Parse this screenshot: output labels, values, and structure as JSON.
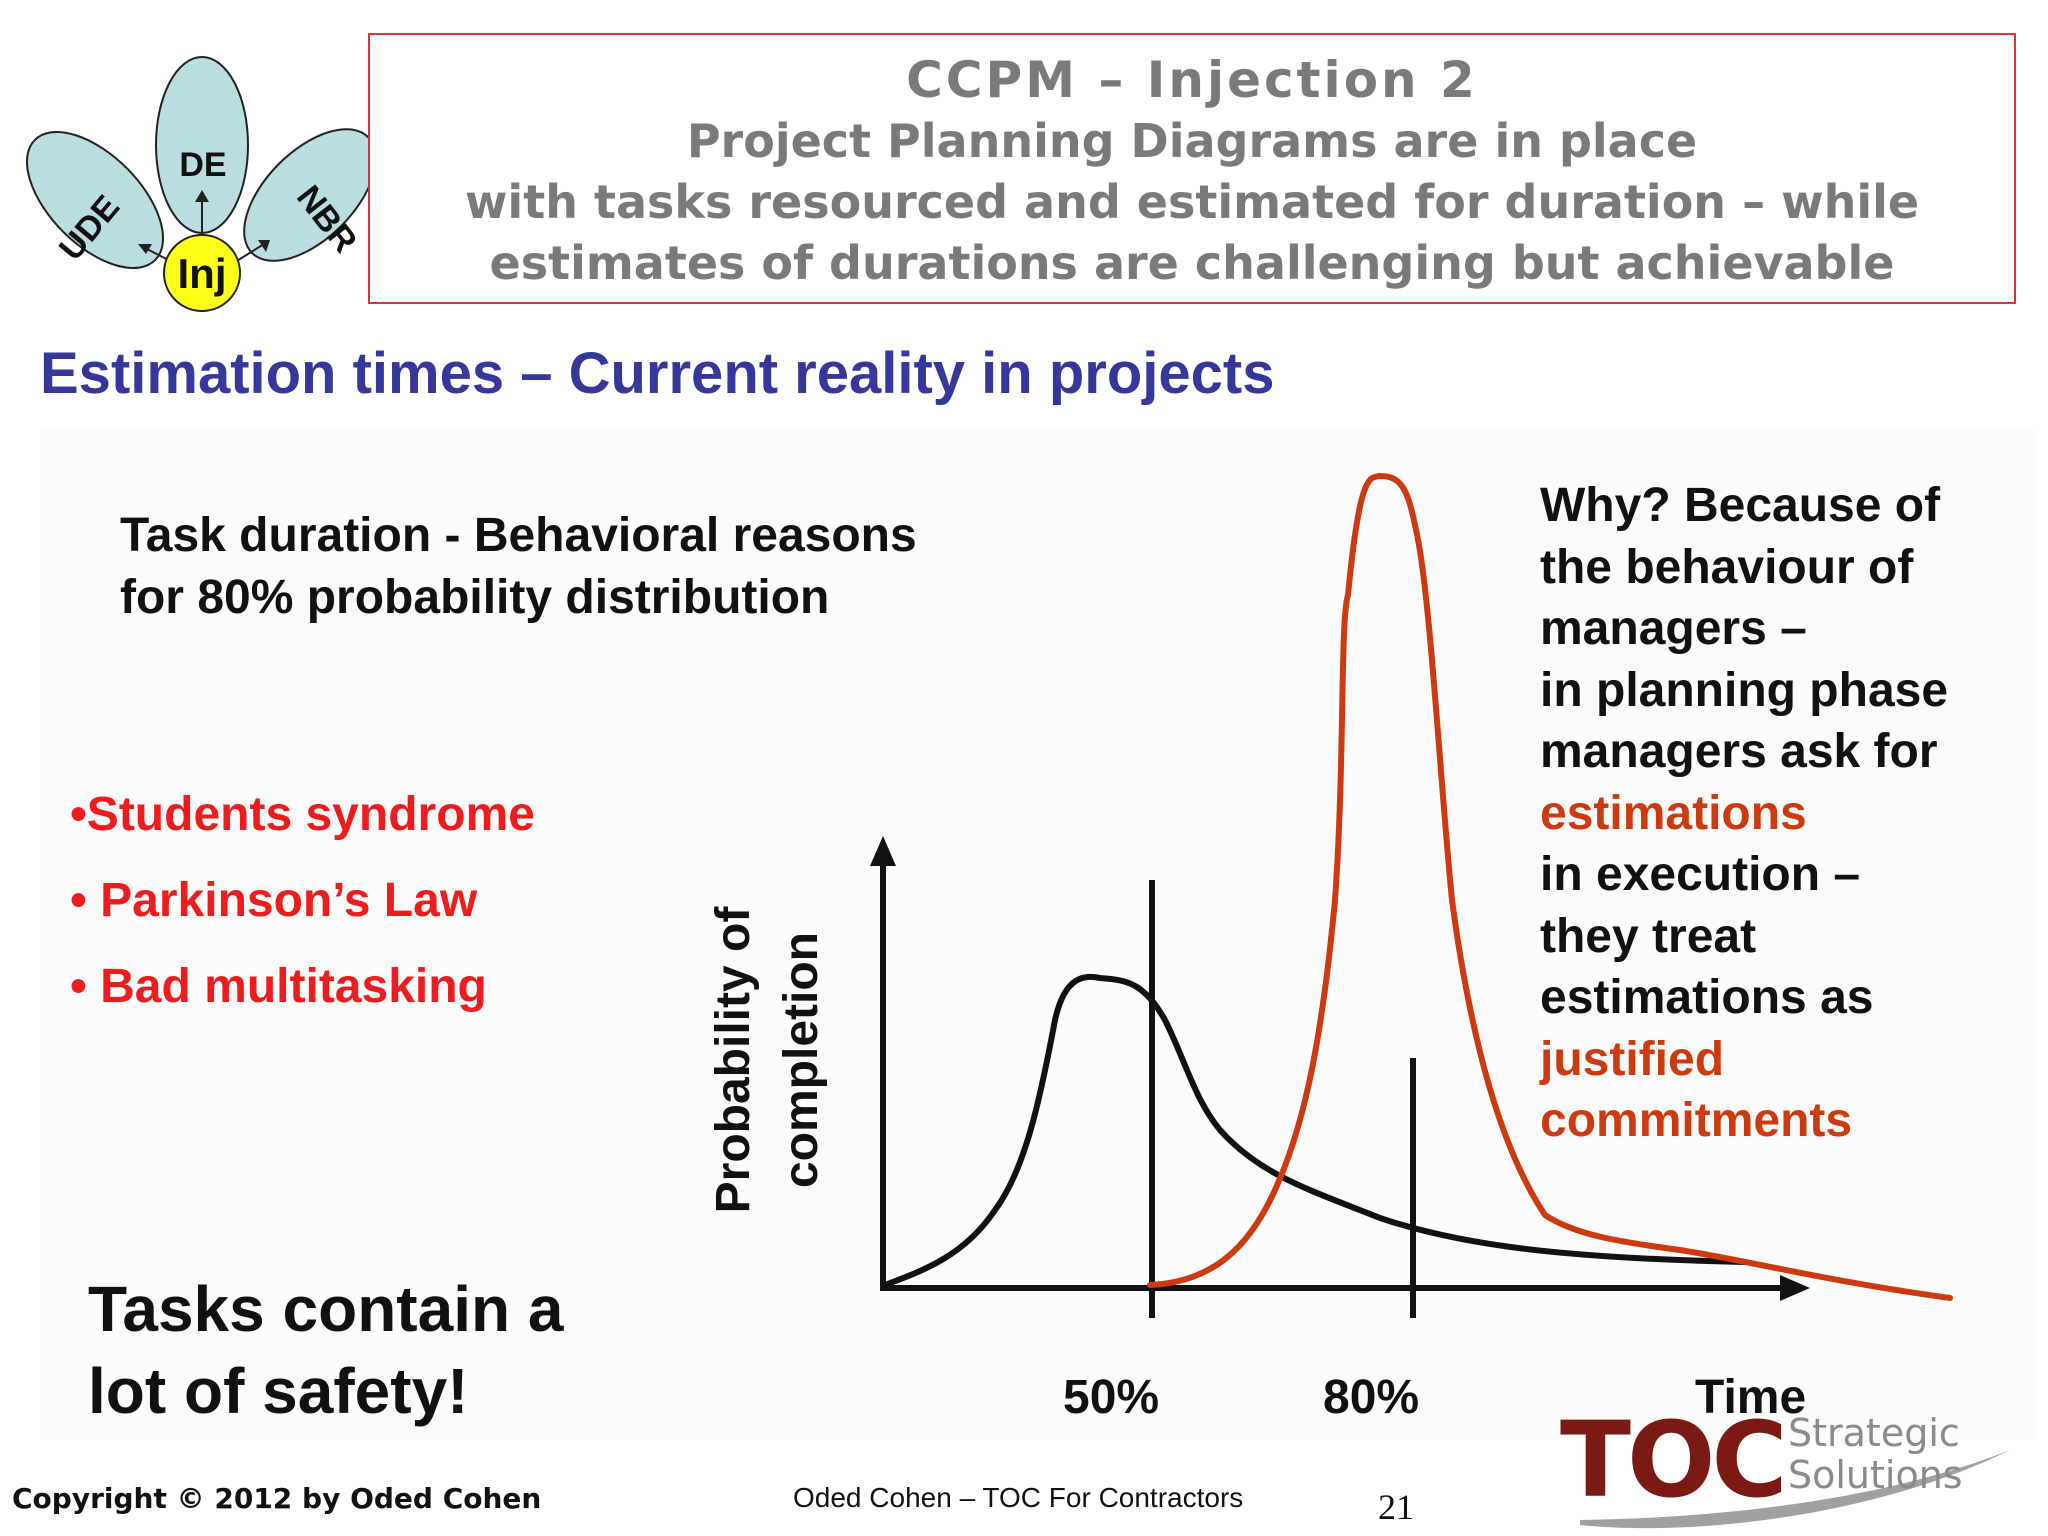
{
  "header": {
    "diagram": {
      "petals": [
        "UDE",
        "DE",
        "NBR"
      ],
      "center": "Inj",
      "colors": {
        "petal": "#b9dde0",
        "center": "#ffff1a"
      }
    },
    "title_lines": [
      "CCPM – Injection 2",
      "Project Planning Diagrams are in place",
      "with tasks resourced and estimated for duration – while",
      "estimates of durations are challenging but achievable"
    ]
  },
  "subtitle": "Estimation times – Current reality in projects",
  "task_duration": {
    "line1": "Task duration - Behavioral reasons",
    "line2": "for 80% probability distribution"
  },
  "bullets": [
    "•Students  syndrome",
    "• Parkinson’s Law",
    "• Bad multitasking"
  ],
  "safety": {
    "line1": "Tasks contain a",
    "line2": "lot of safety!"
  },
  "why_text": {
    "lines": [
      "Why? Because of",
      "the behaviour of",
      "managers –",
      "in planning phase",
      "managers ask for"
    ],
    "highlight1": "estimations",
    "lines2": [
      "in execution –",
      "they treat",
      "estimations as"
    ],
    "highlight2a": "justified",
    "highlight2b": "commitments",
    "highlight_color": "#cc3a10"
  },
  "chart": {
    "ylabel_line1": "Probability of",
    "ylabel_line2": "completion",
    "tick_50": "50%",
    "tick_80": "80%",
    "xlabel": "Time",
    "curve_colors": {
      "black": "#111111",
      "red": "#cc3a10"
    }
  },
  "footer": {
    "copyright": "Copyright © 2012 by Oded Cohen",
    "center": "Oded Cohen – TOC For Contractors",
    "page": "21"
  },
  "logo": {
    "main": "TOC",
    "line1": "Strategic",
    "line2": "Solutions"
  }
}
